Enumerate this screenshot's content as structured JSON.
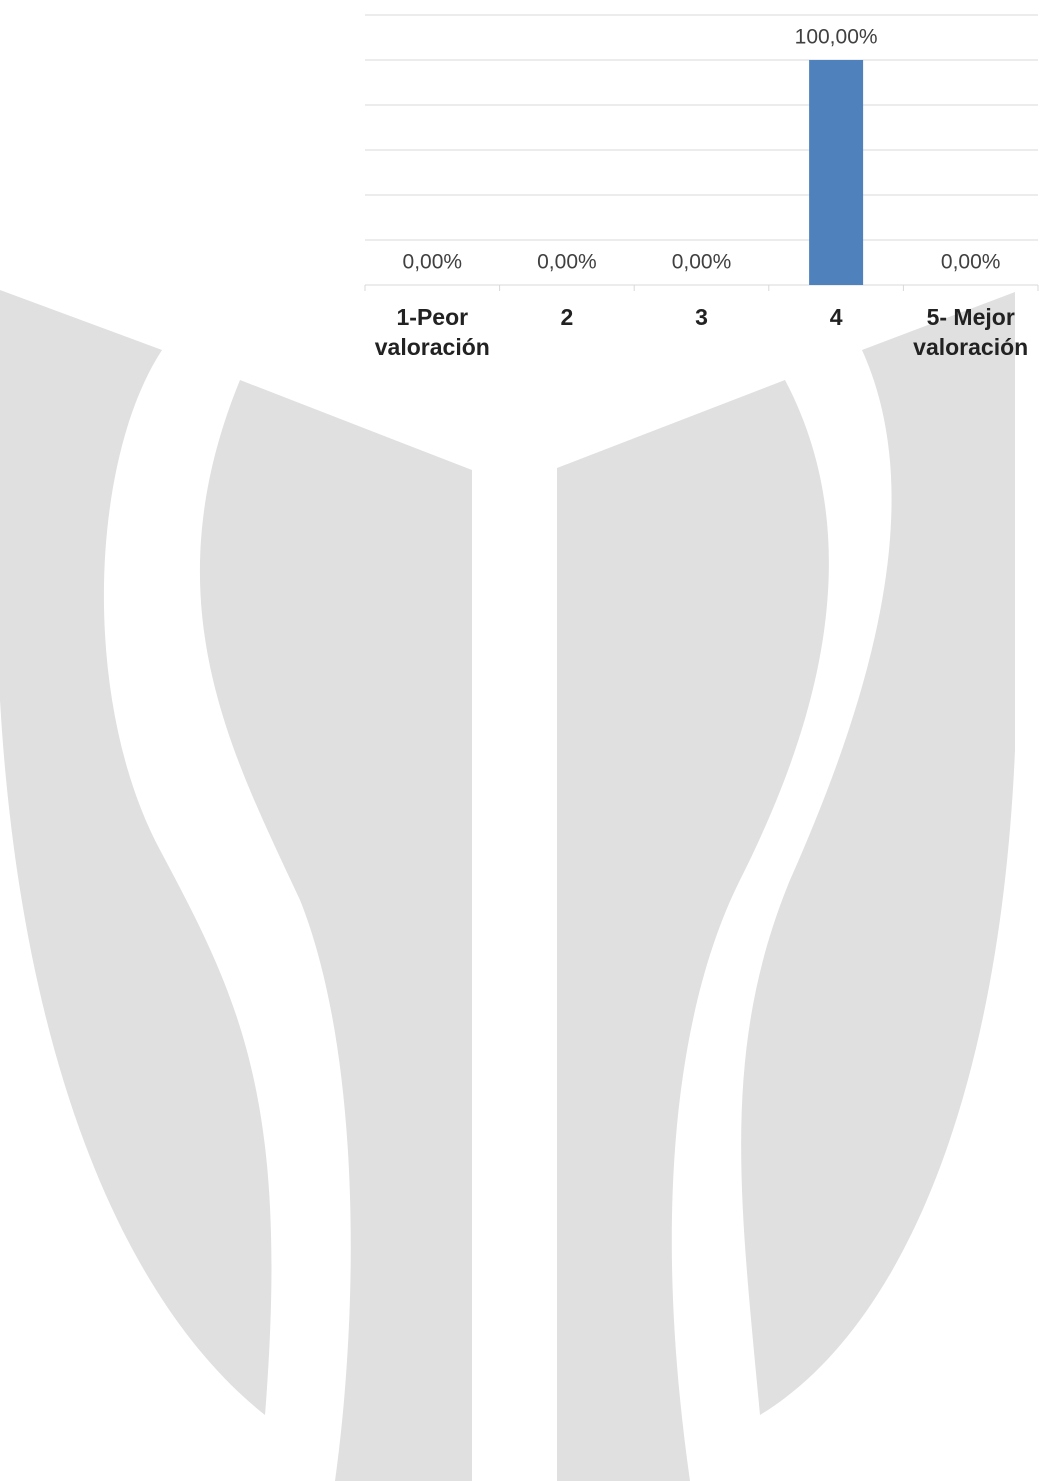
{
  "chart_data": {
    "type": "bar",
    "categories": [
      "1-Peor valoración",
      "2",
      "3",
      "4",
      "5- Mejor valoración"
    ],
    "values": [
      0,
      0,
      0,
      100,
      0
    ],
    "value_labels": [
      "0,00%",
      "0,00%",
      "0,00%",
      "100,00%",
      "0,00%"
    ],
    "color": "#4f81bd",
    "ylim": [
      0,
      120
    ],
    "yticks": [
      0,
      20,
      40,
      60,
      80,
      100,
      120
    ],
    "grid": true
  }
}
